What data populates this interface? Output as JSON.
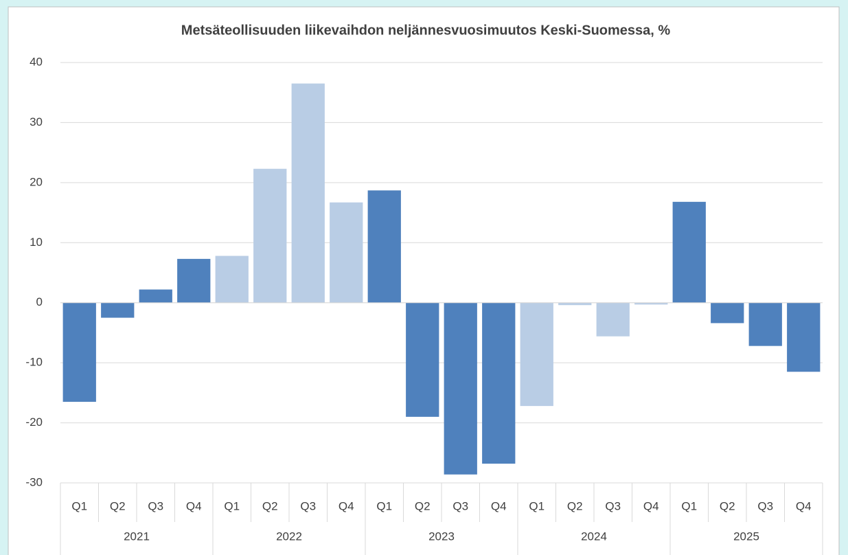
{
  "chart_data": {
    "type": "bar",
    "title": "Metsäteollisuuden liikevaihdon neljännesvuosimuutos Keski-Suomessa, %",
    "groups": [
      {
        "name": "2021",
        "color": "#4f81bd",
        "categories": [
          "Q1",
          "Q2",
          "Q3",
          "Q4"
        ],
        "values": [
          -16.5,
          -2.5,
          2.2,
          7.3
        ]
      },
      {
        "name": "2022",
        "color": "#b9cde5",
        "categories": [
          "Q1",
          "Q2",
          "Q3",
          "Q4"
        ],
        "values": [
          7.8,
          22.3,
          36.5,
          16.7
        ]
      },
      {
        "name": "2023",
        "color": "#4f81bd",
        "categories": [
          "Q1",
          "Q2",
          "Q3",
          "Q4"
        ],
        "values": [
          18.7,
          -19,
          -28.6,
          -26.8
        ]
      },
      {
        "name": "2024",
        "color": "#b9cde5",
        "categories": [
          "Q1",
          "Q2",
          "Q3",
          "Q4"
        ],
        "values": [
          -17.2,
          -0.4,
          -5.6,
          -0.3
        ]
      },
      {
        "name": "2025",
        "color": "#4f81bd",
        "categories": [
          "Q1",
          "Q2",
          "Q3",
          "Q4"
        ],
        "values": [
          16.8,
          -3.4,
          -7.2,
          -11.5
        ]
      }
    ],
    "ylim": [
      -30,
      40
    ],
    "yticks": [
      -30,
      -20,
      -10,
      0,
      10,
      20,
      30,
      40
    ],
    "grid": true
  }
}
